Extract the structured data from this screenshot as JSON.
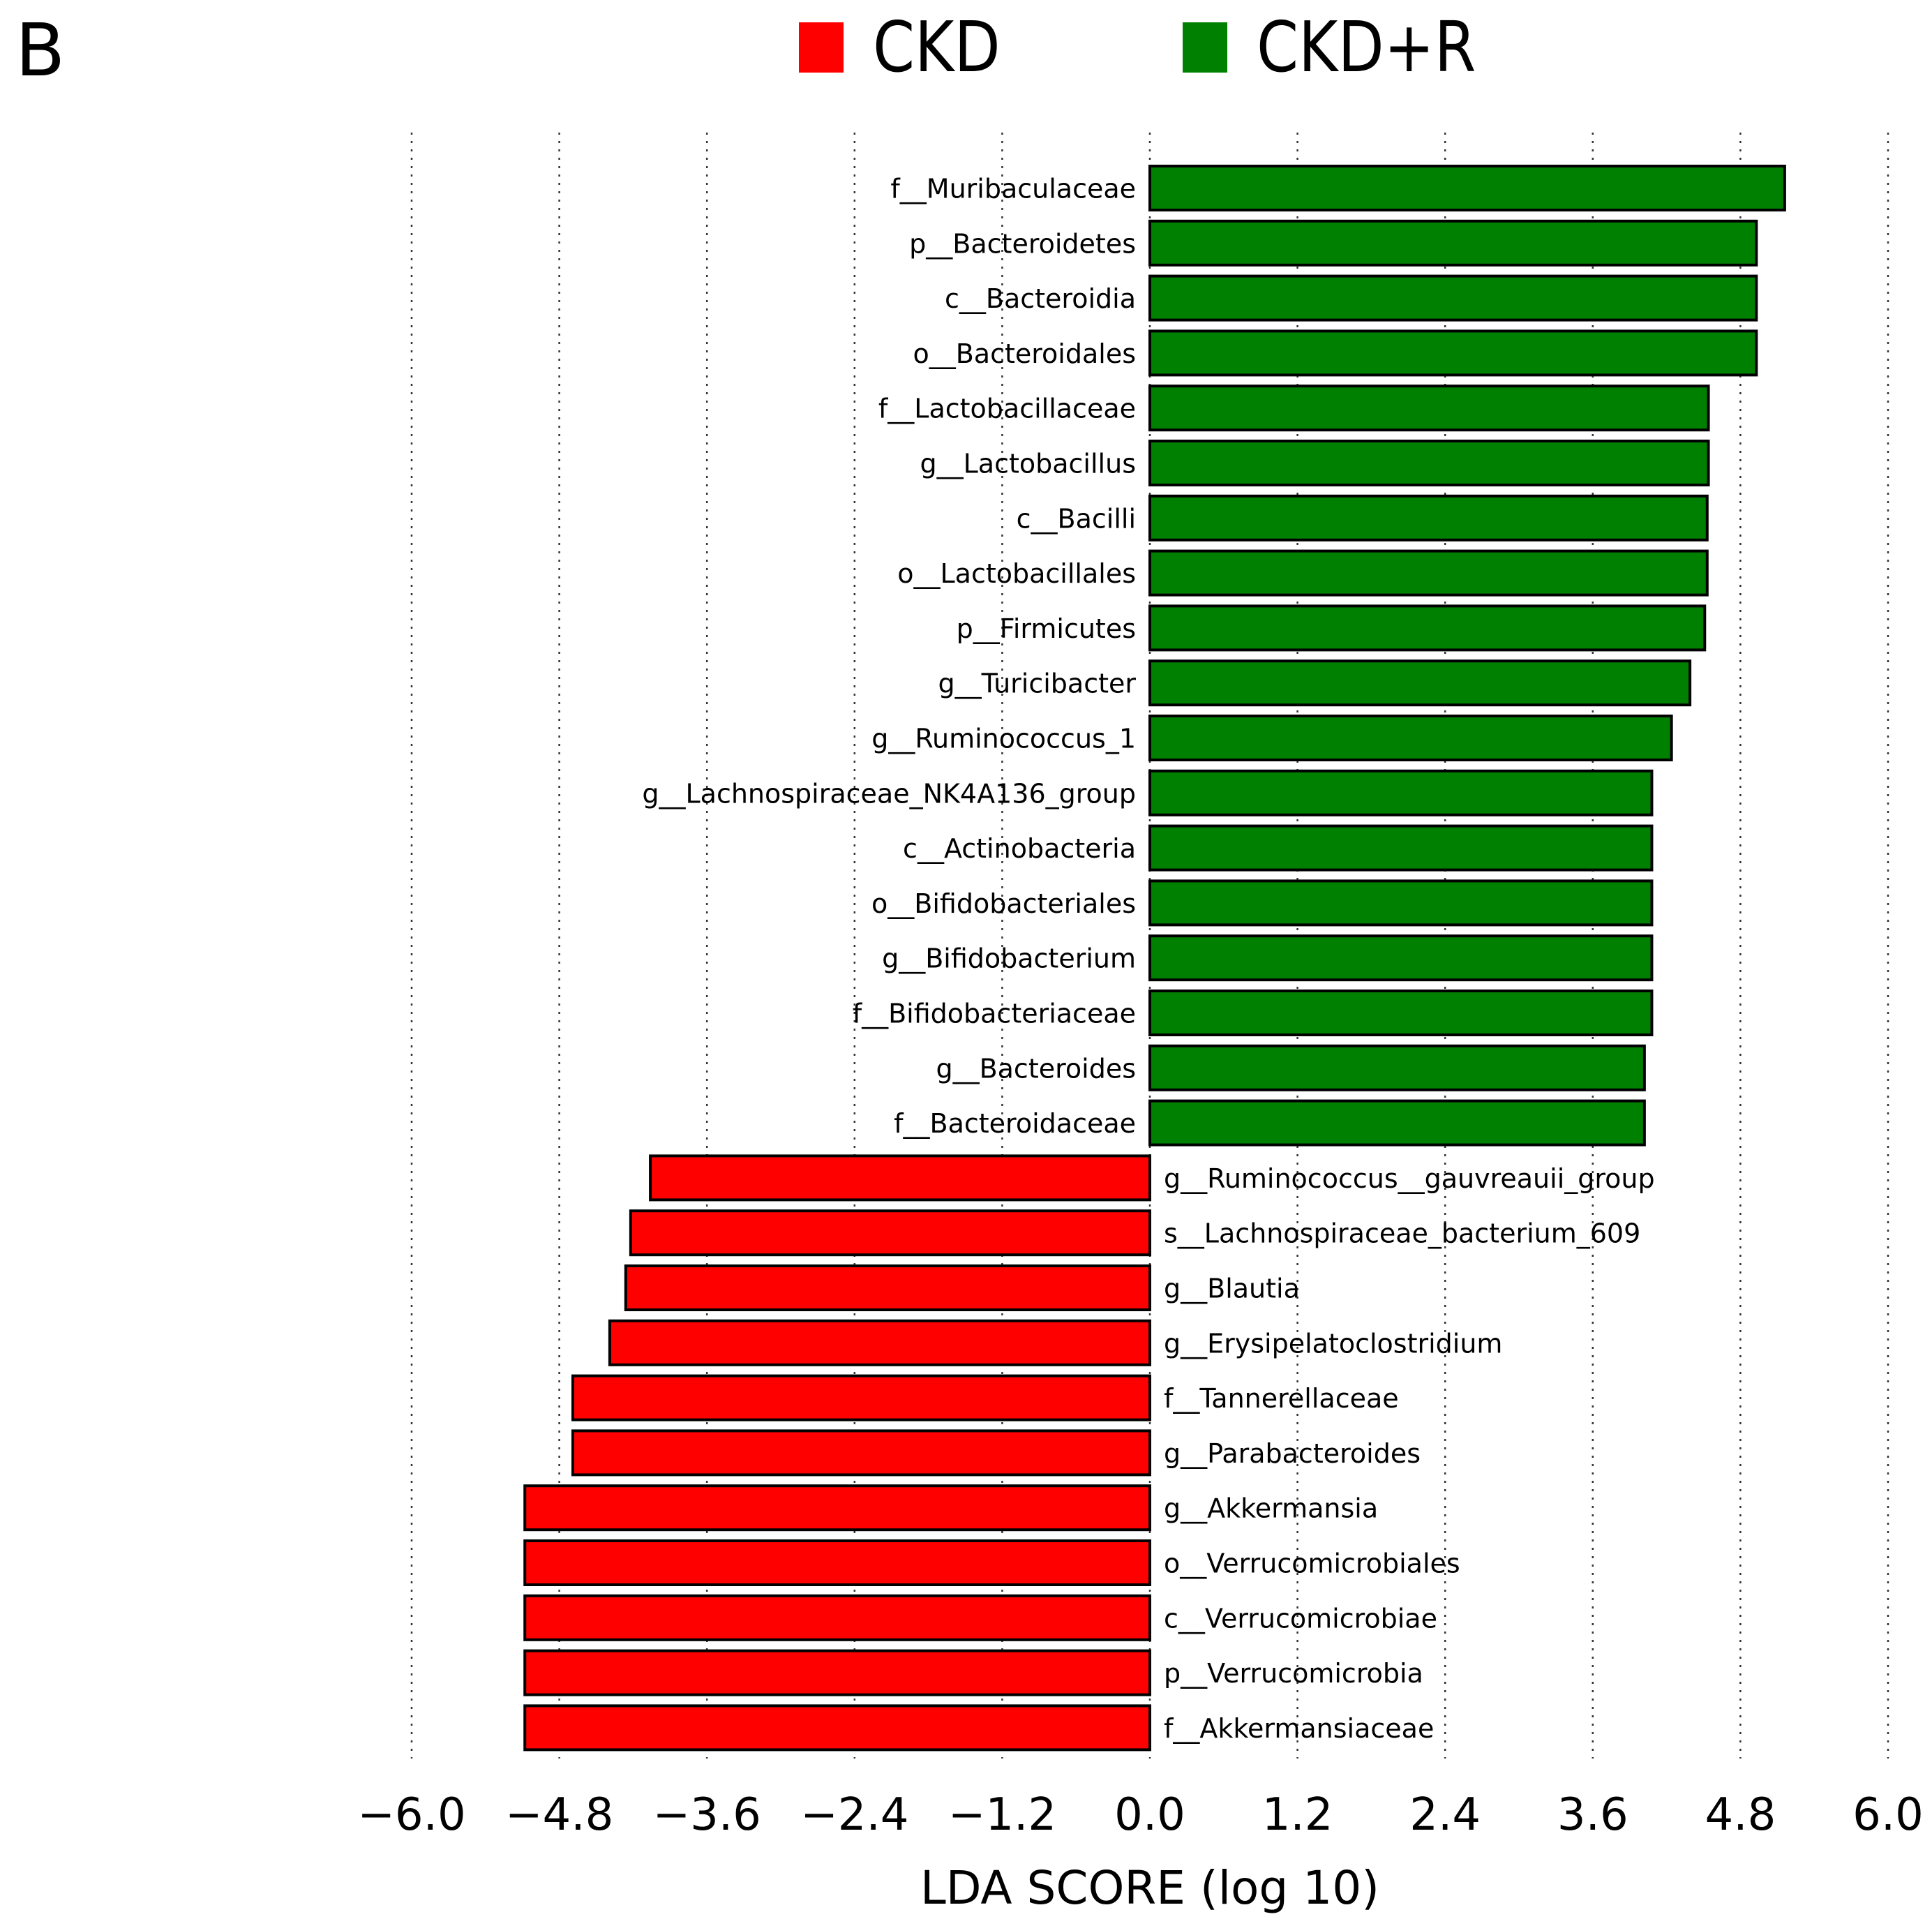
{
  "panel_label": "B",
  "colors": {
    "CKD": "#ff0000",
    "CKD+R": "#008000",
    "bar_edge": "#000000",
    "grid": "#333333"
  },
  "legend": [
    {
      "name": "CKD",
      "color": "#ff0000"
    },
    {
      "name": "CKD+R",
      "color": "#008000"
    }
  ],
  "chart_data": {
    "type": "bar",
    "orientation": "horizontal",
    "title": "",
    "xlabel": "LDA SCORE (log 10)",
    "ylabel": "",
    "xlim": [
      -6.0,
      6.0
    ],
    "xticks": [
      -6.0,
      -4.8,
      -3.6,
      -2.4,
      -1.2,
      0.0,
      1.2,
      2.4,
      3.6,
      4.8,
      6.0
    ],
    "xtick_labels": [
      "−6.0",
      "−4.8",
      "−3.6",
      "−2.4",
      "−1.2",
      "0.0",
      "1.2",
      "2.4",
      "3.6",
      "4.8",
      "6.0"
    ],
    "grid": "vertical dotted",
    "series": [
      {
        "name": "CKD+R",
        "color": "#008000"
      },
      {
        "name": "CKD",
        "color": "#ff0000"
      }
    ],
    "bars": [
      {
        "label": "f__Muribaculaceae",
        "value": 5.16,
        "group": "CKD+R"
      },
      {
        "label": "p__Bacteroidetes",
        "value": 4.93,
        "group": "CKD+R"
      },
      {
        "label": "c__Bacteroidia",
        "value": 4.93,
        "group": "CKD+R"
      },
      {
        "label": "o__Bacteroidales",
        "value": 4.93,
        "group": "CKD+R"
      },
      {
        "label": "f__Lactobacillaceae",
        "value": 4.54,
        "group": "CKD+R"
      },
      {
        "label": "g__Lactobacillus",
        "value": 4.54,
        "group": "CKD+R"
      },
      {
        "label": "c__Bacilli",
        "value": 4.53,
        "group": "CKD+R"
      },
      {
        "label": "o__Lactobacillales",
        "value": 4.53,
        "group": "CKD+R"
      },
      {
        "label": "p__Firmicutes",
        "value": 4.51,
        "group": "CKD+R"
      },
      {
        "label": "g__Turicibacter",
        "value": 4.39,
        "group": "CKD+R"
      },
      {
        "label": "g__Ruminococcus_1",
        "value": 4.24,
        "group": "CKD+R"
      },
      {
        "label": "g__Lachnospiraceae_NK4A136_group",
        "value": 4.08,
        "group": "CKD+R"
      },
      {
        "label": "c__Actinobacteria",
        "value": 4.08,
        "group": "CKD+R"
      },
      {
        "label": "o__Bifidobacteriales",
        "value": 4.08,
        "group": "CKD+R"
      },
      {
        "label": "g__Bifidobacterium",
        "value": 4.08,
        "group": "CKD+R"
      },
      {
        "label": "f__Bifidobacteriaceae",
        "value": 4.08,
        "group": "CKD+R"
      },
      {
        "label": "g__Bacteroides",
        "value": 4.02,
        "group": "CKD+R"
      },
      {
        "label": "f__Bacteroidaceae",
        "value": 4.02,
        "group": "CKD+R"
      },
      {
        "label": "g__Ruminococcus__gauvreauii_group",
        "value": -4.06,
        "group": "CKD"
      },
      {
        "label": "s__Lachnospiraceae_bacterium_609",
        "value": -4.22,
        "group": "CKD"
      },
      {
        "label": "g__Blautia",
        "value": -4.26,
        "group": "CKD"
      },
      {
        "label": "g__Erysipelatoclostridium",
        "value": -4.39,
        "group": "CKD"
      },
      {
        "label": "f__Tannerellaceae",
        "value": -4.69,
        "group": "CKD"
      },
      {
        "label": "g__Parabacteroides",
        "value": -4.69,
        "group": "CKD"
      },
      {
        "label": "g__Akkermansia",
        "value": -5.08,
        "group": "CKD"
      },
      {
        "label": "o__Verrucomicrobiales",
        "value": -5.08,
        "group": "CKD"
      },
      {
        "label": "c__Verrucomicrobiae",
        "value": -5.08,
        "group": "CKD"
      },
      {
        "label": "p__Verrucomicrobia",
        "value": -5.08,
        "group": "CKD"
      },
      {
        "label": "f__Akkermansiaceae",
        "value": -5.08,
        "group": "CKD"
      }
    ]
  }
}
